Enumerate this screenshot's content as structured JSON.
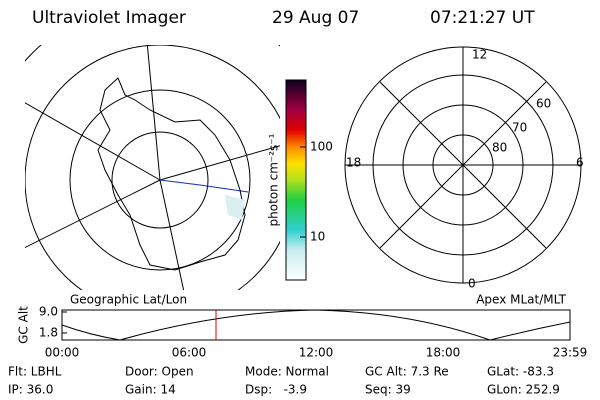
{
  "header": {
    "title": "Ultraviolet Imager",
    "date": "29 Aug 07",
    "time": "07:21:27 UT"
  },
  "left_map": {
    "label": "Geographic Lat/Lon"
  },
  "colorbar": {
    "label": "photon cm⁻²s⁻¹",
    "ticks": [
      "100",
      "10"
    ]
  },
  "right_polar": {
    "label": "Apex MLat/MLT",
    "mlt_labels": [
      "12",
      "18",
      "6",
      "0"
    ],
    "lat_labels": [
      "60",
      "70",
      "80"
    ]
  },
  "altitude_plot": {
    "ylabel": "GC Alt",
    "yticks": [
      "9.0",
      "1.8"
    ],
    "xticks": [
      "00:00",
      "06:00",
      "12:00",
      "18:00",
      "23:59"
    ]
  },
  "status": [
    [
      "Flt: LBHL",
      "Door: Open",
      "Mode: Normal",
      "GC Alt: 7.3 Re",
      "GLat: -83.3"
    ],
    [
      "IP: 36.0",
      "Gain: 14",
      "Dsp:   -3.9",
      "Seq: 39",
      "GLon: 252.9"
    ]
  ]
}
